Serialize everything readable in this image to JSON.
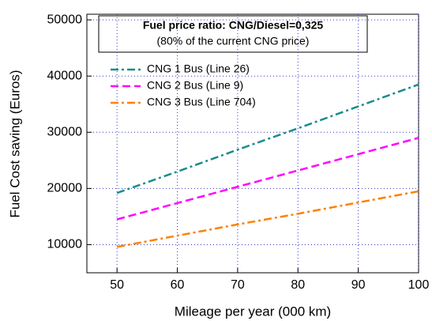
{
  "chart_data": {
    "type": "line",
    "annotations": [
      "Fuel price ratio: CNG/Diesel=0,325",
      "(80% of the current CNG price)"
    ],
    "x_label": "Mileage per year (000 km)",
    "y_label": "Fuel Cost saving (Euros)",
    "x": [
      50,
      60,
      70,
      80,
      90,
      100
    ],
    "series": [
      {
        "name": "CNG 1 Bus (Line 26)",
        "color": "#1a8c8c",
        "values": [
          19200,
          23000,
          26900,
          30700,
          34600,
          38500
        ]
      },
      {
        "name": "CNG 2 Bus (Line 9)",
        "color": "#ff00ff",
        "values": [
          14500,
          17400,
          20300,
          23200,
          26100,
          29000
        ]
      },
      {
        "name": "CNG 3 Bus (Line 704)",
        "color": "#ff8000",
        "values": [
          9600,
          11600,
          13600,
          15500,
          17500,
          19500
        ]
      }
    ],
    "xlim": [
      45,
      100
    ],
    "xticks": [
      50,
      60,
      70,
      80,
      90,
      100
    ],
    "ylim": [
      5000,
      51000
    ],
    "yticks": [
      10000,
      20000,
      30000,
      40000,
      50000
    ],
    "grid": true,
    "legend": "upper left"
  }
}
